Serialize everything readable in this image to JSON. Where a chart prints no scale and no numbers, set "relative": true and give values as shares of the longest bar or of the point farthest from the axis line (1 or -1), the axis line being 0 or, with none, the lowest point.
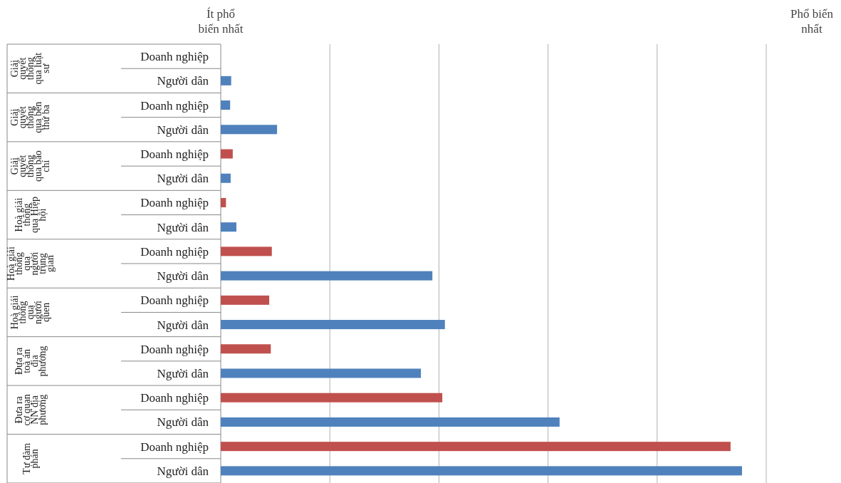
{
  "chart_data": {
    "type": "bar",
    "orientation": "horizontal",
    "relative": true,
    "grid": "x",
    "categories": [
      "Doanh nghiệp",
      "Người dân",
      "Doanh nghiệp",
      "Người dân",
      "Doanh nghiệp",
      "Người dân",
      "Doanh nghiệp",
      "Người dân",
      "Doanh nghiệp",
      "Người dân",
      "Doanh nghiệp",
      "Người dân",
      "Doanh nghiệp",
      "Người dân",
      "Doanh nghiệp",
      "Người dân",
      "Doanh nghiệp",
      "Người dân"
    ],
    "values": [
      0,
      0.02,
      0.018,
      0.108,
      0.023,
      0.019,
      0.01,
      0.03,
      0.098,
      0.406,
      0.093,
      0.43,
      0.096,
      0.384,
      0.425,
      0.65,
      0.978,
      1
    ],
    "colors": [
      "#4f81bd",
      "#4f81bd",
      "#4f81bd",
      "#4f81bd",
      "#c0504d",
      "#4f81bd",
      "#c0504d",
      "#4f81bd",
      "#c0504d",
      "#4f81bd",
      "#c0504d",
      "#4f81bd",
      "#c0504d",
      "#4f81bd",
      "#c0504d",
      "#4f81bd",
      "#c0504d",
      "#4f81bd"
    ],
    "annotations": [
      "Ít phổ biến nhất",
      "Phổ biến nhất",
      "Giải quyết thông qua luật sư",
      "Giải quyết thông qua bên thứ ba",
      "Giải quyết thông qua báo chí",
      "Hoà giải thông qua Hiệp hội",
      "Hoà giải thông qua người trung gian",
      "Hoà giải thông qua người quen",
      "Đưa ra toà án địa phương",
      "Đưa ra cơ quan NN địa phương",
      "Tự đàm phán"
    ]
  }
}
